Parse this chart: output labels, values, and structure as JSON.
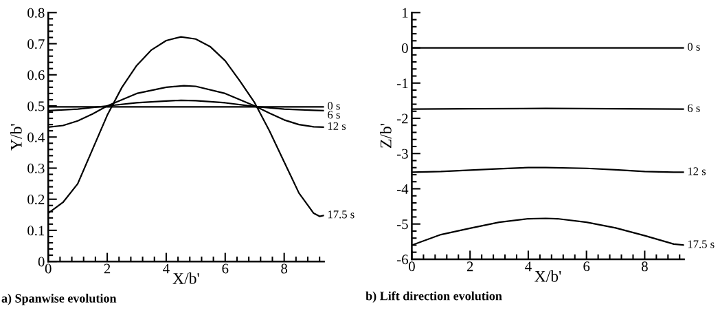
{
  "chart_data": [
    {
      "type": "line",
      "xlabel": "X/b'",
      "ylabel": "Y/b'",
      "annotations": [
        "a) Spanwise evolution"
      ],
      "xlim": [
        0,
        9.35
      ],
      "xticks": [
        0,
        2,
        4,
        6,
        8
      ],
      "ylim": [
        0,
        0.8
      ],
      "yticks": [
        0,
        0.1,
        0.2,
        0.3,
        0.4,
        0.5,
        0.6,
        0.7,
        0.8
      ],
      "grid": false,
      "legend": false,
      "marker": "none",
      "line_style": "solid",
      "series": [
        {
          "name": "0 s",
          "color": "#000000",
          "x": [
            0,
            9.35
          ],
          "values": [
            0.497,
            0.497
          ]
        },
        {
          "name": "6 s",
          "color": "#000000",
          "x": [
            0,
            1,
            2,
            3,
            4,
            4.5,
            5,
            6,
            7,
            8,
            9,
            9.35
          ],
          "values": [
            0.485,
            0.49,
            0.5,
            0.51,
            0.516,
            0.518,
            0.517,
            0.51,
            0.498,
            0.49,
            0.486,
            0.485
          ]
        },
        {
          "name": "12 s",
          "color": "#000000",
          "x": [
            0,
            0.5,
            1,
            1.5,
            2,
            3,
            4,
            4.6,
            5,
            6,
            7,
            7.5,
            8,
            8.5,
            9,
            9.35
          ],
          "values": [
            0.432,
            0.437,
            0.452,
            0.474,
            0.5,
            0.54,
            0.56,
            0.565,
            0.563,
            0.54,
            0.5,
            0.477,
            0.455,
            0.44,
            0.433,
            0.432
          ]
        },
        {
          "name": "17.5 s",
          "color": "#000000",
          "x": [
            0,
            0.5,
            1,
            1.5,
            2,
            2.5,
            3,
            3.5,
            4,
            4.5,
            5,
            5.5,
            6,
            6.5,
            7,
            7.5,
            8,
            8.5,
            9,
            9.2,
            9.35
          ],
          "values": [
            0.155,
            0.19,
            0.25,
            0.36,
            0.47,
            0.56,
            0.63,
            0.68,
            0.71,
            0.722,
            0.715,
            0.69,
            0.645,
            0.58,
            0.51,
            0.42,
            0.32,
            0.22,
            0.155,
            0.145,
            0.148
          ]
        }
      ]
    },
    {
      "type": "line",
      "xlabel": "X/b'",
      "ylabel": "Z/b'",
      "annotations": [
        "b) Lift direction evolution"
      ],
      "xlim": [
        0,
        9.35
      ],
      "xticks": [
        0,
        2,
        4,
        6,
        8
      ],
      "ylim": [
        -6,
        1
      ],
      "yticks": [
        -6,
        -5,
        -4,
        -3,
        -2,
        -1,
        0,
        1
      ],
      "grid": false,
      "legend": false,
      "marker": "none",
      "line_style": "solid",
      "series": [
        {
          "name": "0 s",
          "color": "#000000",
          "x": [
            0,
            9.35
          ],
          "values": [
            0,
            0
          ]
        },
        {
          "name": "6 s",
          "color": "#000000",
          "x": [
            0,
            2,
            4.6,
            7,
            9.35
          ],
          "values": [
            -1.74,
            -1.73,
            -1.72,
            -1.73,
            -1.74
          ]
        },
        {
          "name": "12 s",
          "color": "#000000",
          "x": [
            0,
            1,
            2,
            3,
            4,
            4.6,
            6,
            7,
            8,
            9,
            9.35
          ],
          "values": [
            -3.53,
            -3.51,
            -3.47,
            -3.43,
            -3.4,
            -3.4,
            -3.42,
            -3.46,
            -3.51,
            -3.53,
            -3.53
          ]
        },
        {
          "name": "17.5 s",
          "color": "#000000",
          "x": [
            0,
            1,
            2,
            3,
            4,
            4.6,
            5,
            6,
            7,
            8,
            9,
            9.35
          ],
          "values": [
            -5.6,
            -5.3,
            -5.12,
            -4.95,
            -4.85,
            -4.84,
            -4.85,
            -4.95,
            -5.11,
            -5.33,
            -5.57,
            -5.6
          ]
        }
      ]
    }
  ]
}
